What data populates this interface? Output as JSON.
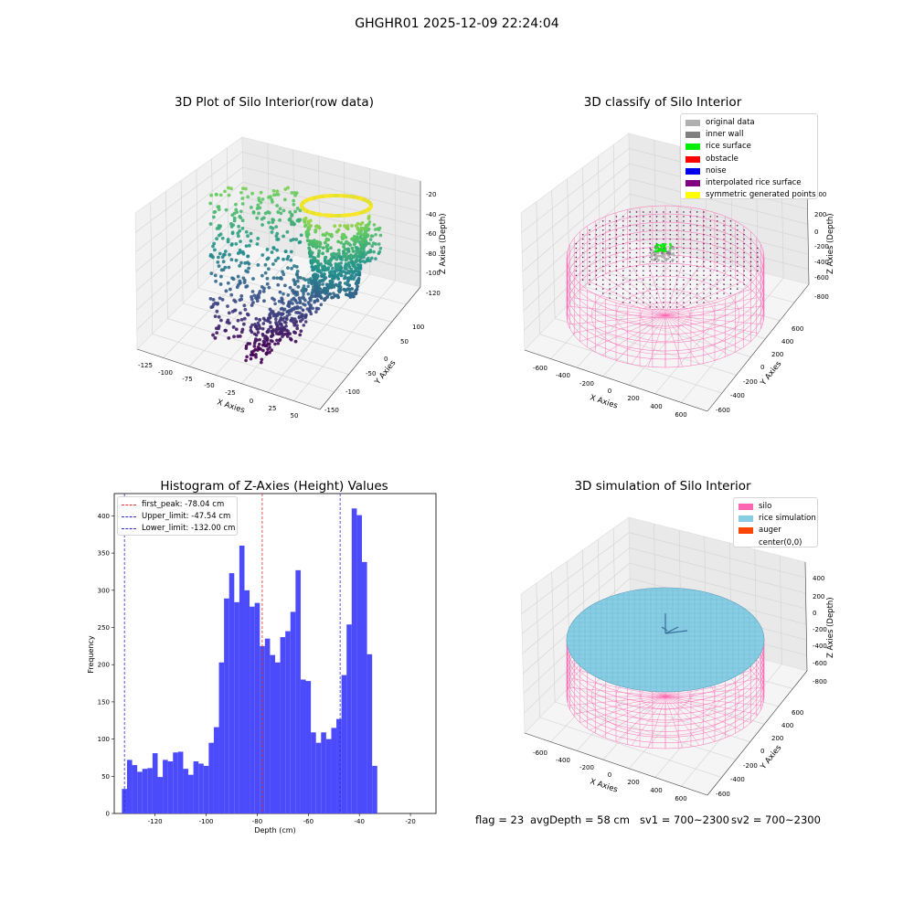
{
  "suptitle": "GHGHR01 2025-12-09 22:24:04",
  "colors": {
    "hist_bar": "#4b4bfb",
    "first_peak": "#e03030",
    "limits": "#2a2ad8",
    "silo": "#ff66b2",
    "rice_sim": "#87cde3",
    "rice_surface": "#00ee00",
    "inner_wall": "#808080",
    "original": "#b0b0b0"
  },
  "panel1": {
    "title": "3D Plot of Silo Interior(row data)",
    "xlabel": "X Axies",
    "ylabel": "Y Axies",
    "zlabel": "Z Axies (Depth)",
    "xticks": [
      "-125",
      "-100",
      "-75",
      "-50",
      "-25",
      "0",
      "25",
      "50"
    ],
    "yticks": [
      "-150",
      "-100",
      "-50",
      "0",
      "50",
      "100"
    ],
    "zticks": [
      "-20",
      "-40",
      "-60",
      "-80",
      "-100",
      "-120"
    ]
  },
  "panel2": {
    "title": "3D classify of Silo Interior",
    "xlabel": "X Axies",
    "ylabel": "Y Axies",
    "zlabel": "Z Axies (Depth)",
    "xticks": [
      "-600",
      "-400",
      "-200",
      "0",
      "200",
      "400",
      "600"
    ],
    "yticks": [
      "-600",
      "-400",
      "-200",
      "0",
      "200",
      "400",
      "600"
    ],
    "zticks": [
      "400",
      "200",
      "0",
      "-200",
      "-400",
      "-600",
      "-800"
    ],
    "legend": [
      {
        "label": "original data",
        "color": "#b0b0b0"
      },
      {
        "label": "inner wall",
        "color": "#808080"
      },
      {
        "label": "rice surface",
        "color": "#00ee00"
      },
      {
        "label": "obstacle",
        "color": "#ff0000"
      },
      {
        "label": "noise",
        "color": "#0000ee"
      },
      {
        "label": "interpolated rice surface",
        "color": "#800080"
      },
      {
        "label": "symmetric generated points",
        "color": "#ffff00"
      }
    ]
  },
  "panel3": {
    "title": "Histogram of Z-Axies (Height) Values",
    "legend": [
      {
        "label": "first_peak: -78.04 cm",
        "color": "#e03030"
      },
      {
        "label": "Upper_limit: -47.54 cm",
        "color": "#2a2ad8"
      },
      {
        "label": "Lower_limit: -132.00 cm",
        "color": "#2a2ad8"
      }
    ]
  },
  "panel4": {
    "title": "3D simulation of Silo Interior",
    "xlabel": "X Axies",
    "ylabel": "Y Axies",
    "zlabel": "Z Axies (Depth)",
    "xticks": [
      "-600",
      "-400",
      "-200",
      "0",
      "200",
      "400",
      "600"
    ],
    "yticks": [
      "-600",
      "-400",
      "-200",
      "0",
      "200",
      "400",
      "600"
    ],
    "zticks": [
      "400",
      "200",
      "0",
      "-200",
      "-400",
      "-600",
      "-800"
    ],
    "legend": [
      {
        "label": "silo",
        "color": "#ff66b2"
      },
      {
        "label": "rice simulation",
        "color": "#87cde3"
      },
      {
        "label": "auger",
        "color": "#ff4500"
      },
      {
        "label": "center(0,0)",
        "color": "#ffffff"
      }
    ]
  },
  "footer": {
    "flag": "flag = 23",
    "avg": "avgDepth = 58 cm",
    "sv1": "sv1 = 700~2300",
    "sv2": "sv2 = 700~2300"
  },
  "chart_data": [
    {
      "type": "scatter",
      "title": "3D Plot of Silo Interior(row data)",
      "xlabel": "X Axies",
      "ylabel": "Y Axies",
      "zlabel": "Z Axies (Depth)",
      "xlim": [
        -135,
        60
      ],
      "ylim": [
        -165,
        110
      ],
      "zlim": [
        -135,
        -10
      ]
    },
    {
      "type": "scatter",
      "title": "3D classify of Silo Interior",
      "xlabel": "X Axies",
      "ylabel": "Y Axies",
      "zlabel": "Z Axies (Depth)",
      "xlim": [
        -700,
        700
      ],
      "ylim": [
        -700,
        700
      ],
      "zlim": [
        -900,
        450
      ]
    },
    {
      "type": "bar",
      "title": "Histogram of Z-Axies (Height) Values",
      "xlabel": "Depth (cm)",
      "ylabel": "Frequency",
      "bin_start": -133.0,
      "bin_width": 2.0,
      "values": [
        33,
        72,
        65,
        56,
        60,
        61,
        81,
        49,
        72,
        70,
        82,
        83,
        60,
        52,
        70,
        67,
        64,
        95,
        116,
        203,
        289,
        323,
        284,
        360,
        300,
        278,
        283,
        225,
        235,
        213,
        203,
        237,
        245,
        271,
        327,
        180,
        178,
        109,
        95,
        109,
        100,
        115,
        127,
        186,
        254,
        410,
        401,
        338,
        214,
        64
      ],
      "xlim": [
        -136,
        -10
      ],
      "ylim": [
        0,
        430
      ],
      "xticks": [
        -120,
        -100,
        -80,
        -60,
        -40,
        -20
      ],
      "yticks": [
        0,
        50,
        100,
        150,
        200,
        250,
        300,
        350,
        400
      ],
      "vlines": [
        {
          "name": "first_peak",
          "x": -78.04
        },
        {
          "name": "Upper_limit",
          "x": -47.54
        },
        {
          "name": "Lower_limit",
          "x": -132.0
        }
      ]
    },
    {
      "type": "area",
      "title": "3D simulation of Silo Interior",
      "xlabel": "X Axies",
      "ylabel": "Y Axies",
      "zlabel": "Z Axies (Depth)",
      "xlim": [
        -700,
        700
      ],
      "ylim": [
        -700,
        700
      ],
      "zlim": [
        -900,
        450
      ]
    }
  ]
}
